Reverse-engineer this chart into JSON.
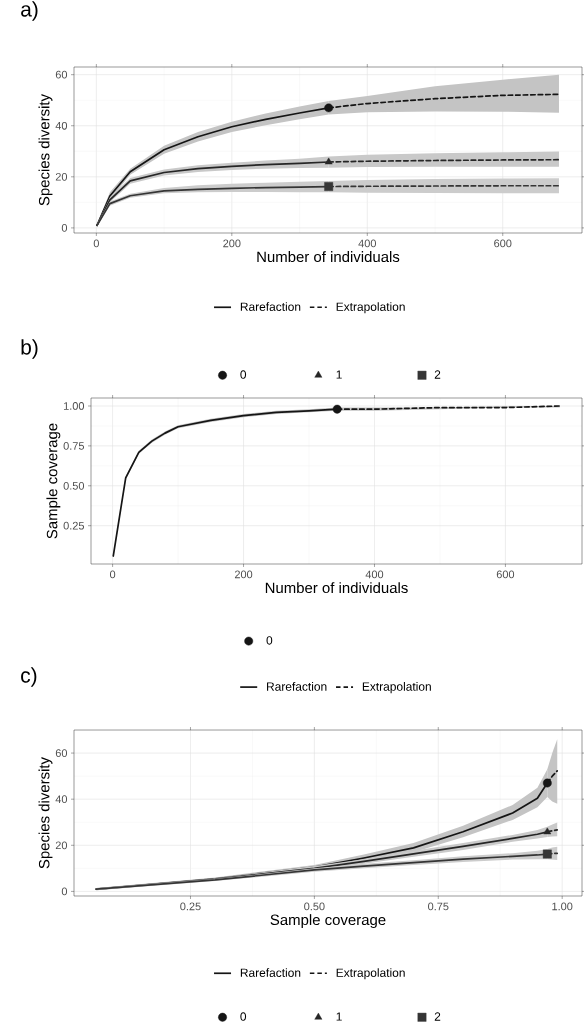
{
  "chart_data": [
    {
      "type": "line",
      "title": "a)",
      "xlabel": "Number of individuals",
      "ylabel": "Species diversity",
      "xlim": [
        -33,
        717
      ],
      "ylim": [
        -2,
        63
      ],
      "xticks": [
        0,
        200,
        400,
        600
      ],
      "yticks": [
        0,
        20,
        40,
        60
      ],
      "grid": true,
      "legend": "bottom",
      "series": [
        {
          "name": "Rarefaction",
          "color": "#151515",
          "line_style": "solid",
          "x": [
            1,
            20,
            50,
            100,
            150,
            200,
            250,
            300,
            343
          ],
          "values": [
            1,
            12.5,
            22,
            30.6,
            35.7,
            39.6,
            42.5,
            45,
            47
          ],
          "lower": [
            0.5,
            11,
            20.8,
            29,
            33.8,
            37.6,
            40.2,
            42.5,
            44.4
          ],
          "upper": [
            1.5,
            14,
            23.2,
            32.2,
            37.6,
            41.6,
            44.8,
            47.5,
            49.7
          ]
        },
        {
          "name": "Extrapolation",
          "color": "#151515",
          "line_style": "dashed",
          "x": [
            343,
            400,
            500,
            600,
            683
          ],
          "values": [
            47,
            48.7,
            50.6,
            51.9,
            52.3
          ],
          "lower": [
            44.4,
            45.3,
            45.6,
            45.5,
            45.1
          ],
          "upper": [
            49.7,
            51.6,
            55.5,
            58,
            60
          ]
        },
        {
          "color": "#262626",
          "line_style": "solid",
          "x": [
            1,
            20,
            50,
            100,
            150,
            200,
            250,
            300,
            343
          ],
          "values": [
            1,
            11,
            18.4,
            21.7,
            23.2,
            24.1,
            24.8,
            25.3,
            25.8
          ],
          "lower": [
            0.5,
            10,
            17.3,
            20.5,
            21.9,
            22.7,
            23.2,
            23.5,
            23.6
          ],
          "upper": [
            1.5,
            12,
            19.5,
            22.9,
            24.5,
            25.5,
            26.4,
            27.1,
            28
          ]
        },
        {
          "color": "#262626",
          "line_style": "dashed",
          "x": [
            343,
            400,
            500,
            600,
            683
          ],
          "values": [
            25.8,
            26.1,
            26.4,
            26.6,
            26.7
          ],
          "lower": [
            23.6,
            23.8,
            23.9,
            23.9,
            23.9
          ],
          "upper": [
            28,
            28.6,
            29.2,
            29.6,
            29.9
          ]
        },
        {
          "color": "#353535",
          "line_style": "solid",
          "x": [
            1,
            20,
            50,
            100,
            150,
            200,
            250,
            300,
            343
          ],
          "values": [
            1,
            9.5,
            12.6,
            14.5,
            15.1,
            15.5,
            15.8,
            16,
            16.2
          ],
          "lower": [
            0.5,
            8.7,
            11.8,
            13.6,
            14,
            14.1,
            14.1,
            14,
            14
          ],
          "upper": [
            1.5,
            10.3,
            13.4,
            15.6,
            16.7,
            17.3,
            17.7,
            18.1,
            18.4
          ]
        },
        {
          "color": "#353535",
          "line_style": "dashed",
          "x": [
            343,
            400,
            500,
            600,
            683
          ],
          "values": [
            16.2,
            16.3,
            16.4,
            16.5,
            16.5
          ],
          "lower": [
            14,
            13.8,
            13.7,
            13.6,
            13.6
          ],
          "upper": [
            18.4,
            18.8,
            19.1,
            19.3,
            19.4
          ]
        },
        {
          "type": "scatter",
          "name": "0",
          "color": "#151515",
          "marker": "circle",
          "x": [
            343
          ],
          "values": [
            47
          ]
        },
        {
          "type": "scatter",
          "name": "1",
          "color": "#262626",
          "marker": "triangle",
          "x": [
            343
          ],
          "values": [
            25.8
          ]
        },
        {
          "type": "scatter",
          "name": "2",
          "color": "#353535",
          "marker": "square",
          "x": [
            343
          ],
          "values": [
            16.2
          ]
        }
      ]
    },
    {
      "type": "line",
      "title": "b)",
      "xlabel": "Number of individuals",
      "ylabel": "Sample coverage",
      "xlim": [
        -33,
        717
      ],
      "ylim": [
        0.01,
        1.05
      ],
      "xticks": [
        0,
        200,
        400,
        600
      ],
      "yticks": [
        {
          "value": 0.25,
          "label": "0.25"
        },
        {
          "value": 0.5,
          "label": "0.50"
        },
        {
          "value": 0.75,
          "label": "0.75"
        },
        {
          "value": 1,
          "label": "1.00"
        }
      ],
      "grid": true,
      "legend": "bottom",
      "series": [
        {
          "type": "scatter",
          "name": "0",
          "color": "#151515",
          "marker": "circle",
          "x": [
            343
          ],
          "values": [
            0.98
          ]
        },
        {
          "name": "Rarefaction",
          "color": "#151515",
          "line_style": "solid",
          "x": [
            1,
            20,
            40,
            60,
            80,
            100,
            150,
            200,
            250,
            300,
            343
          ],
          "values": [
            0.06,
            0.55,
            0.71,
            0.78,
            0.83,
            0.87,
            0.91,
            0.94,
            0.96,
            0.97,
            0.98
          ],
          "lower": [
            0.05,
            0.54,
            0.7,
            0.77,
            0.82,
            0.86,
            0.9,
            0.93,
            0.95,
            0.96,
            0.97
          ],
          "upper": [
            0.07,
            0.56,
            0.72,
            0.79,
            0.84,
            0.88,
            0.92,
            0.95,
            0.97,
            0.98,
            0.99
          ]
        },
        {
          "name": "Extrapolation",
          "color": "#151515",
          "line_style": "dashed",
          "x": [
            343,
            400,
            500,
            600,
            683
          ],
          "values": [
            0.98,
            0.98,
            0.99,
            0.99,
            1.0
          ],
          "lower": [
            0.97,
            0.97,
            0.98,
            0.99,
            0.99
          ],
          "upper": [
            0.99,
            0.99,
            0.99,
            1.0,
            1.0
          ]
        }
      ]
    },
    {
      "type": "line",
      "title": "c)",
      "xlabel": "Sample coverage",
      "ylabel": "Species diversity",
      "xlim": [
        0.015,
        1.04
      ],
      "ylim": [
        -2,
        70
      ],
      "xticks": [
        {
          "value": 0.25,
          "label": "0.25"
        },
        {
          "value": 0.5,
          "label": "0.50"
        },
        {
          "value": 0.75,
          "label": "0.75"
        },
        {
          "value": 1,
          "label": "1.00"
        }
      ],
      "yticks": [
        0,
        20,
        40,
        60
      ],
      "grid": true,
      "legend": "bottom",
      "series": [
        {
          "name": "Rarefaction",
          "color": "#151515",
          "line_style": "solid",
          "x": [
            0.06,
            0.3,
            0.5,
            0.6,
            0.7,
            0.8,
            0.9,
            0.95,
            0.97
          ],
          "values": [
            1,
            5.5,
            10.5,
            14.5,
            18.9,
            25.9,
            34,
            40.4,
            47
          ],
          "lower": [
            0.5,
            5,
            9.5,
            13,
            17,
            23.5,
            31,
            36.5,
            41
          ],
          "upper": [
            1.5,
            6,
            11.5,
            16,
            21,
            28.5,
            37.5,
            45,
            53
          ]
        },
        {
          "name": "Extrapolation",
          "color": "#151515",
          "line_style": "dashed",
          "x": [
            0.97,
            0.98,
            0.99
          ],
          "values": [
            47,
            50,
            52.3
          ],
          "lower": [
            41,
            39,
            38
          ],
          "upper": [
            53,
            60,
            66
          ]
        },
        {
          "color": "#262626",
          "line_style": "solid",
          "x": [
            0.06,
            0.3,
            0.5,
            0.6,
            0.7,
            0.8,
            0.9,
            0.95,
            0.97
          ],
          "values": [
            1,
            5.3,
            10,
            13,
            16.3,
            19.5,
            23,
            24.8,
            25.8
          ],
          "lower": [
            0.5,
            4.8,
            9,
            12,
            15,
            18,
            21.5,
            23,
            23.6
          ],
          "upper": [
            1.5,
            5.8,
            11,
            14,
            17.6,
            21,
            24.5,
            26.6,
            28
          ]
        },
        {
          "color": "#262626",
          "line_style": "dashed",
          "x": [
            0.97,
            0.98,
            0.99
          ],
          "values": [
            25.8,
            26.3,
            26.7
          ],
          "lower": [
            23.6,
            23.8,
            23.9
          ],
          "upper": [
            28,
            29,
            29.9
          ]
        },
        {
          "color": "#353535",
          "line_style": "solid",
          "x": [
            0.06,
            0.3,
            0.5,
            0.6,
            0.7,
            0.8,
            0.9,
            0.95,
            0.97
          ],
          "values": [
            1,
            5,
            9.3,
            11,
            12.5,
            14,
            15.2,
            15.8,
            16.2
          ],
          "lower": [
            0.5,
            4.5,
            8.5,
            10,
            11.5,
            12.8,
            13.8,
            14,
            14
          ],
          "upper": [
            1.5,
            5.5,
            10,
            12,
            13.5,
            15.2,
            16.6,
            17.6,
            18.4
          ]
        },
        {
          "color": "#353535",
          "line_style": "dashed",
          "x": [
            0.97,
            0.98,
            0.99
          ],
          "values": [
            16.2,
            16.4,
            16.5
          ],
          "lower": [
            14,
            13.8,
            13.6
          ],
          "upper": [
            18.4,
            19,
            19.4
          ]
        },
        {
          "type": "scatter",
          "name": "0",
          "color": "#151515",
          "marker": "circle",
          "x": [
            0.97
          ],
          "values": [
            47
          ]
        },
        {
          "type": "scatter",
          "name": "1",
          "color": "#262626",
          "marker": "triangle",
          "x": [
            0.97
          ],
          "values": [
            25.8
          ]
        },
        {
          "type": "scatter",
          "name": "2",
          "color": "#353535",
          "marker": "square",
          "x": [
            0.97
          ],
          "values": [
            16.2
          ]
        }
      ]
    }
  ]
}
